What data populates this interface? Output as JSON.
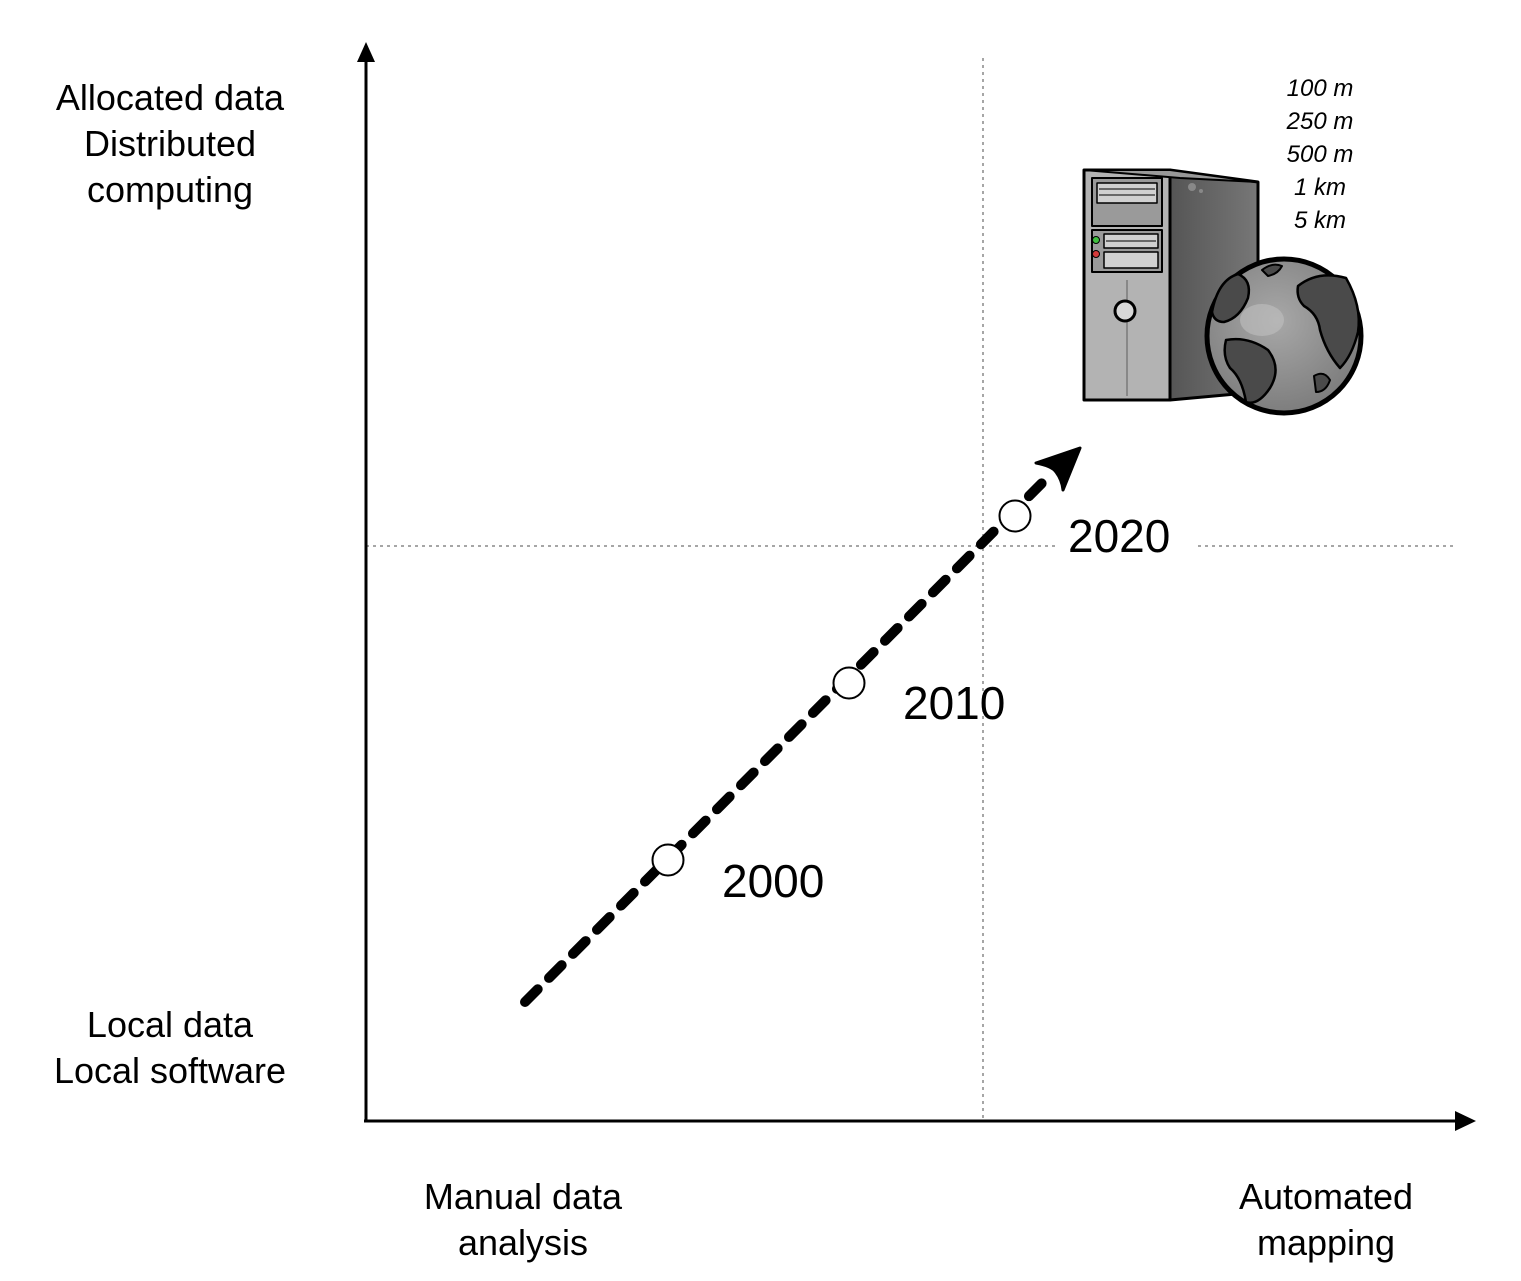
{
  "axes": {
    "y_top": [
      "Allocated data",
      "Distributed",
      "computing"
    ],
    "y_bottom": [
      "Local data",
      "Local software"
    ],
    "x_left": [
      "Manual data",
      "analysis"
    ],
    "x_right": [
      "Automated",
      "mapping"
    ]
  },
  "milestones": [
    {
      "year": "2000"
    },
    {
      "year": "2010"
    },
    {
      "year": "2020"
    }
  ],
  "resolutions": [
    "100 m",
    "250 m",
    "500 m",
    "1 km",
    "5 km"
  ],
  "icons": {
    "computer": "computer-tower-icon",
    "globe": "globe-icon"
  },
  "colors": {
    "tower_light": "#b3b3b3",
    "tower_dark": "#606060",
    "globe_ocean": "#8c8c8c",
    "globe_land": "#4a4a4a"
  }
}
